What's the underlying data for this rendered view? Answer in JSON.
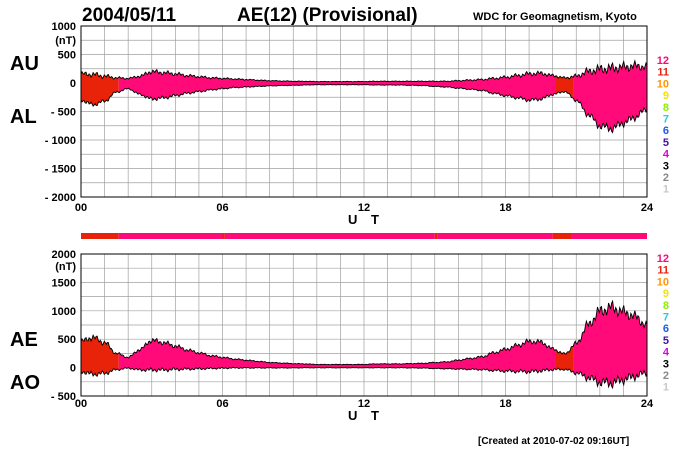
{
  "header": {
    "date": "2004/05/11",
    "title": "AE(12) (Provisional)",
    "org": "WDC for Geomagnetism, Kyoto"
  },
  "footer": {
    "created": "[Created at 2010-07-02 09:16UT]"
  },
  "legend": {
    "items": [
      {
        "label": "12",
        "color": "#ff0a78"
      },
      {
        "label": "11",
        "color": "#e8230a"
      },
      {
        "label": "10",
        "color": "#ff9600"
      },
      {
        "label": "9",
        "color": "#f0e600"
      },
      {
        "label": "8",
        "color": "#8cf000"
      },
      {
        "label": "7",
        "color": "#28c8e6"
      },
      {
        "label": "6",
        "color": "#1e5ae6"
      },
      {
        "label": "5",
        "color": "#3c14a0"
      },
      {
        "label": "4",
        "color": "#dc00dc"
      },
      {
        "label": "3",
        "color": "#000000"
      },
      {
        "label": "2",
        "color": "#888888"
      },
      {
        "label": "1",
        "color": "#c8c8c8"
      }
    ]
  },
  "colors": {
    "stations12": "#ff0a78",
    "stations11": "#e8230a",
    "grid": "#a0a0a0"
  },
  "chart_data": [
    {
      "type": "area",
      "panel": "AU/AL",
      "side_labels": [
        "AU",
        "AL"
      ],
      "unit": "(nT)",
      "xlabel": "U T",
      "xticks": [
        "00",
        "06",
        "12",
        "18",
        "24"
      ],
      "xlim": [
        0,
        24
      ],
      "ylim": [
        -2000,
        1000
      ],
      "yticks": [
        "1000",
        "500",
        "0",
        "- 500",
        "- 1000",
        "- 1500",
        "- 2000"
      ],
      "x_hours": [
        0,
        0.5,
        1,
        1.5,
        2,
        2.5,
        3,
        3.5,
        4,
        4.5,
        5,
        5.5,
        6,
        6.5,
        7,
        7.5,
        8,
        8.5,
        9,
        9.5,
        10,
        10.5,
        11,
        11.5,
        12,
        12.5,
        13,
        13.5,
        14,
        14.5,
        15,
        15.5,
        16,
        16.5,
        17,
        17.5,
        18,
        18.5,
        19,
        19.5,
        20,
        20.5,
        21,
        21.5,
        22,
        22.5,
        23,
        23.5,
        24
      ],
      "series": [
        {
          "name": "AU",
          "values": [
            160,
            150,
            120,
            90,
            80,
            120,
            200,
            180,
            160,
            130,
            110,
            90,
            80,
            70,
            60,
            50,
            40,
            35,
            30,
            30,
            25,
            25,
            25,
            25,
            25,
            30,
            30,
            30,
            30,
            30,
            30,
            30,
            40,
            50,
            60,
            80,
            100,
            130,
            160,
            170,
            130,
            90,
            120,
            200,
            240,
            260,
            280,
            300,
            280
          ]
        },
        {
          "name": "AL",
          "values": [
            -300,
            -380,
            -320,
            -160,
            -100,
            -200,
            -280,
            -260,
            -220,
            -180,
            -150,
            -120,
            -100,
            -80,
            -70,
            -60,
            -50,
            -45,
            -40,
            -35,
            -30,
            -30,
            -30,
            -30,
            -30,
            -35,
            -35,
            -35,
            -40,
            -45,
            -60,
            -70,
            -90,
            -110,
            -130,
            -180,
            -220,
            -260,
            -300,
            -280,
            -200,
            -150,
            -300,
            -550,
            -750,
            -800,
            -700,
            -600,
            -450
          ]
        }
      ],
      "station_colors": [
        {
          "from": 0,
          "to": 1.6,
          "stations": 11
        },
        {
          "from": 1.6,
          "to": 20.1,
          "stations": 12
        },
        {
          "from": 20.1,
          "to": 20.9,
          "stations": 11
        },
        {
          "from": 20.9,
          "to": 24,
          "stations": 12
        }
      ]
    },
    {
      "type": "area",
      "panel": "AE/AO",
      "side_labels": [
        "AE",
        "AO"
      ],
      "unit": "(nT)",
      "xlabel": "U T",
      "xticks": [
        "00",
        "06",
        "12",
        "18",
        "24"
      ],
      "xlim": [
        0,
        24
      ],
      "ylim": [
        -500,
        2000
      ],
      "yticks": [
        "2000",
        "1500",
        "1000",
        "500",
        "0",
        "- 500"
      ],
      "x_hours": [
        0,
        0.5,
        1,
        1.5,
        2,
        2.5,
        3,
        3.5,
        4,
        4.5,
        5,
        5.5,
        6,
        6.5,
        7,
        7.5,
        8,
        8.5,
        9,
        9.5,
        10,
        10.5,
        11,
        11.5,
        12,
        12.5,
        13,
        13.5,
        14,
        14.5,
        15,
        15.5,
        16,
        16.5,
        17,
        17.5,
        18,
        18.5,
        19,
        19.5,
        20,
        20.5,
        21,
        21.5,
        22,
        22.5,
        23,
        23.5,
        24
      ],
      "series": [
        {
          "name": "AE",
          "values": [
            460,
            530,
            440,
            250,
            180,
            320,
            480,
            440,
            380,
            310,
            260,
            210,
            180,
            150,
            130,
            110,
            90,
            80,
            70,
            65,
            55,
            55,
            55,
            55,
            55,
            65,
            65,
            65,
            70,
            75,
            90,
            100,
            130,
            160,
            190,
            260,
            320,
            390,
            460,
            450,
            330,
            240,
            420,
            750,
            990,
            1060,
            980,
            900,
            730
          ]
        },
        {
          "name": "AO",
          "values": [
            -70,
            -115,
            -100,
            -35,
            -10,
            -40,
            -40,
            -40,
            -30,
            -25,
            -20,
            -15,
            -10,
            -5,
            -5,
            -5,
            -5,
            -5,
            -5,
            -3,
            -3,
            -3,
            -3,
            -3,
            -3,
            -3,
            -3,
            -3,
            -5,
            -8,
            -15,
            -20,
            -25,
            -30,
            -35,
            -50,
            -60,
            -65,
            -70,
            -55,
            -35,
            -30,
            -90,
            -175,
            -255,
            -270,
            -210,
            -150,
            -85
          ]
        }
      ],
      "station_colors": [
        {
          "from": 0,
          "to": 1.6,
          "stations": 11
        },
        {
          "from": 1.6,
          "to": 20.1,
          "stations": 12
        },
        {
          "from": 20.1,
          "to": 20.9,
          "stations": 11
        },
        {
          "from": 20.9,
          "to": 24,
          "stations": 12
        }
      ]
    }
  ],
  "station_bar": [
    {
      "from": 0,
      "to": 1.6,
      "stations": 11
    },
    {
      "from": 1.6,
      "to": 6.0,
      "stations": 12
    },
    {
      "from": 6.0,
      "to": 6.1,
      "stations": 11
    },
    {
      "from": 6.1,
      "to": 15.0,
      "stations": 12
    },
    {
      "from": 15.0,
      "to": 15.1,
      "stations": 11
    },
    {
      "from": 15.1,
      "to": 20.0,
      "stations": 12
    },
    {
      "from": 20.0,
      "to": 20.8,
      "stations": 11
    },
    {
      "from": 20.8,
      "to": 24,
      "stations": 12
    }
  ]
}
